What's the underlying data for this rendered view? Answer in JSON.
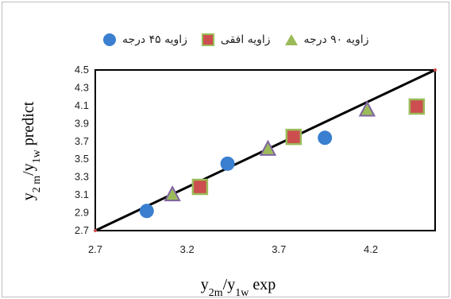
{
  "chart_data": {
    "type": "scatter",
    "xlabel": "y2m/y1w exp",
    "ylabel": "y2 m/y1w predict",
    "xlim": [
      2.7,
      4.55
    ],
    "ylim": [
      2.7,
      4.5
    ],
    "xticks": [
      "2.7",
      "3.2",
      "3.7",
      "4.2"
    ],
    "yticks": [
      "2.7",
      "2.9",
      "3.1",
      "3.3",
      "3.5",
      "3.7",
      "3.9",
      "4.1",
      "4.3",
      "4.5"
    ],
    "legend_position": "top",
    "grid": false,
    "reference_line": {
      "x": [
        2.7,
        4.55
      ],
      "y": [
        2.7,
        4.5
      ]
    },
    "series": [
      {
        "name": "زاویه ۴۵ درجه",
        "marker": "circle",
        "color": "#3a7fd0",
        "x": [
          2.98,
          3.42,
          3.95
        ],
        "y": [
          2.92,
          3.45,
          3.74
        ]
      },
      {
        "name": "زاویه افقی",
        "marker": "square",
        "color": "#cc4e4e",
        "edge": "#9bbb59",
        "x": [
          3.27,
          3.78,
          4.45
        ],
        "y": [
          3.19,
          3.75,
          4.09
        ]
      },
      {
        "name": "زاویه ۹۰ درجه",
        "marker": "triangle",
        "color": "#9bbb59",
        "edge": "#8064a2",
        "x": [
          3.12,
          3.64,
          4.18
        ],
        "y": [
          3.1,
          3.61,
          4.05
        ]
      }
    ]
  }
}
